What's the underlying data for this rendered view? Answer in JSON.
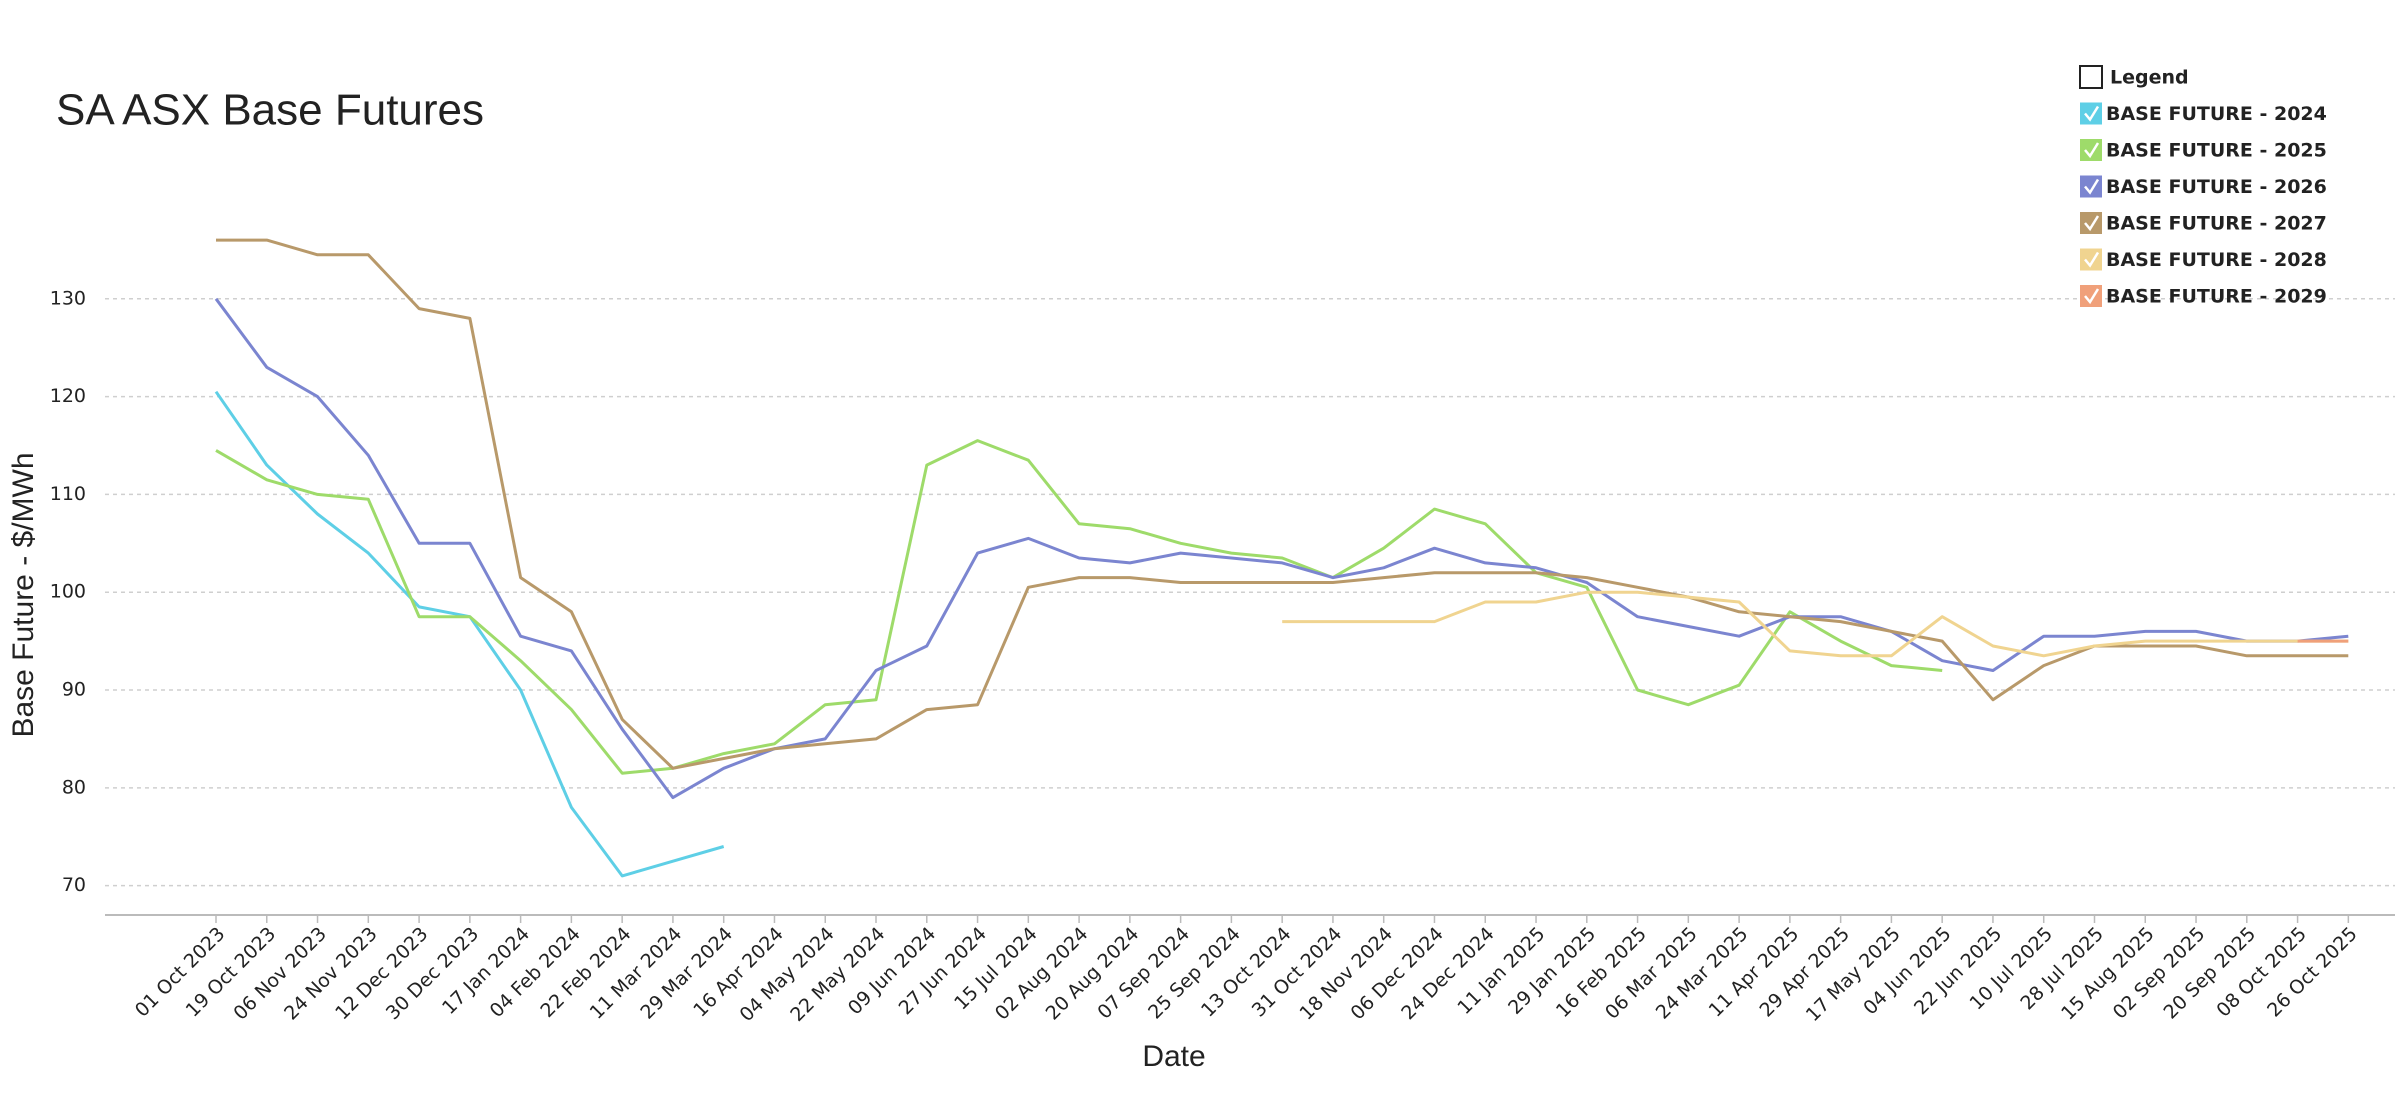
{
  "chart_data": {
    "type": "line",
    "title": "SA ASX Base Futures",
    "x_label": "Date",
    "y_label": "Base Future -  $/MWh",
    "legend_title": "Legend",
    "x": [
      "01 Oct 2023",
      "19 Oct 2023",
      "06 Nov 2023",
      "24 Nov 2023",
      "12 Dec 2023",
      "30 Dec 2023",
      "17 Jan 2024",
      "04 Feb 2024",
      "22 Feb 2024",
      "11 Mar 2024",
      "29 Mar 2024",
      "16 Apr 2024",
      "04 May 2024",
      "22 May 2024",
      "09 Jun 2024",
      "27 Jun 2024",
      "15 Jul 2024",
      "02 Aug 2024",
      "20 Aug 2024",
      "07 Sep 2024",
      "25 Sep 2024",
      "13 Oct 2024",
      "31 Oct 2024",
      "18 Nov 2024",
      "06 Dec 2024",
      "24 Dec 2024",
      "11 Jan 2025",
      "29 Jan 2025",
      "16 Feb 2025",
      "06 Mar 2025",
      "24 Mar 2025",
      "11 Apr 2025",
      "29 Apr 2025",
      "17 May 2025",
      "04 Jun 2025",
      "22 Jun 2025",
      "10 Jul 2025",
      "28 Jul 2025",
      "15 Aug 2025",
      "02 Sep 2025",
      "20 Sep 2025",
      "08 Oct 2025",
      "26 Oct 2025"
    ],
    "ylim": [
      67,
      140
    ],
    "yticks": [
      70,
      80,
      90,
      100,
      110,
      120,
      130
    ],
    "grid": true,
    "legend": "top-right",
    "series": [
      {
        "name": "BASE FUTURE - 2024",
        "color": "#5ecfe6",
        "values": [
          120.5,
          113,
          108,
          104,
          98.5,
          97.5,
          90,
          78,
          71,
          72.5,
          74,
          null,
          null,
          null,
          null,
          null,
          null,
          null,
          null,
          null,
          null,
          null,
          null,
          null,
          null,
          null,
          null,
          null,
          null,
          null,
          null,
          null,
          null,
          null,
          null,
          null,
          null,
          null,
          null,
          null,
          null,
          null,
          null
        ]
      },
      {
        "name": "BASE FUTURE - 2025",
        "color": "#9edb6a",
        "values": [
          114.5,
          111.5,
          110,
          109.5,
          97.5,
          97.5,
          93,
          88,
          81.5,
          82,
          83.5,
          84.5,
          88.5,
          89,
          113,
          115.5,
          113.5,
          107,
          106.5,
          105,
          104,
          103.5,
          101.5,
          104.5,
          108.5,
          107,
          102,
          100.5,
          90,
          88.5,
          90.5,
          98,
          95,
          92.5,
          92,
          null,
          null,
          null,
          null,
          null,
          null,
          null,
          null
        ]
      },
      {
        "name": "BASE FUTURE - 2026",
        "color": "#7b85d0",
        "values": [
          130,
          123,
          120,
          114,
          105,
          105,
          95.5,
          94,
          86,
          79,
          82,
          84,
          85,
          92,
          94.5,
          104,
          105.5,
          103.5,
          103,
          104,
          103.5,
          103,
          101.5,
          102.5,
          104.5,
          103,
          102.5,
          101,
          97.5,
          96.5,
          95.5,
          97.5,
          97.5,
          96,
          93,
          92,
          95.5,
          95.5,
          96,
          96,
          95,
          95,
          95.5
        ]
      },
      {
        "name": "BASE FUTURE - 2027",
        "color": "#b8996a",
        "values": [
          136,
          136,
          134.5,
          134.5,
          129,
          128,
          101.5,
          98,
          87,
          82,
          83,
          84,
          84.5,
          85,
          88,
          88.5,
          100.5,
          101.5,
          101.5,
          101,
          101,
          101,
          101,
          101.5,
          102,
          102,
          102,
          101.5,
          100.5,
          99.5,
          98,
          97.5,
          97,
          96,
          95,
          89,
          92.5,
          94.5,
          94.5,
          94.5,
          93.5,
          93.5,
          93.5
        ]
      },
      {
        "name": "BASE FUTURE - 2028",
        "color": "#f0d490",
        "values": [
          null,
          null,
          null,
          null,
          null,
          null,
          null,
          null,
          null,
          null,
          null,
          null,
          null,
          null,
          null,
          null,
          null,
          null,
          null,
          null,
          null,
          97,
          97,
          97,
          97,
          99,
          99,
          100,
          100,
          99.5,
          99,
          94,
          93.5,
          93.5,
          97.5,
          94.5,
          93.5,
          94.5,
          95,
          95,
          95,
          95,
          95
        ]
      },
      {
        "name": "BASE FUTURE - 2029",
        "color": "#f0a07a",
        "values": [
          null,
          null,
          null,
          null,
          null,
          null,
          null,
          null,
          null,
          null,
          null,
          null,
          null,
          null,
          null,
          null,
          null,
          null,
          null,
          null,
          null,
          null,
          null,
          null,
          null,
          null,
          null,
          null,
          null,
          null,
          null,
          null,
          null,
          null,
          null,
          null,
          null,
          null,
          null,
          null,
          null,
          95,
          95
        ]
      }
    ]
  }
}
